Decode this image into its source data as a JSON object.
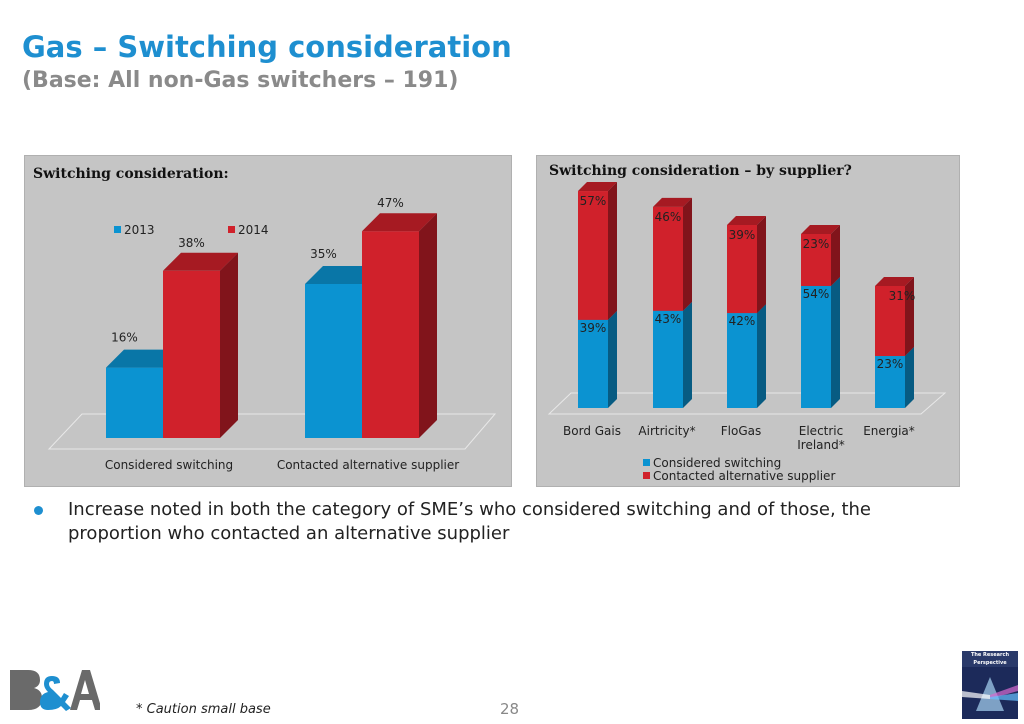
{
  "page": {
    "title": "Gas – Switching consideration",
    "subtitle": "(Base: All non-Gas switchers – 191)",
    "bullet": "Increase noted in both the category of SME’s who considered switching and of those, the proportion who contacted an alternative supplier",
    "footnote": "* Caution small base",
    "page_number": "28",
    "logo_right_text": "The Research Perspective"
  },
  "colors": {
    "blue": "#0b93d1",
    "red": "#d0212b",
    "panel_bg": "#c5c5c5",
    "accent": "#1e8fd0"
  },
  "chart_data": [
    {
      "type": "bar",
      "title": "Switching consideration:",
      "categories": [
        "Considered switching",
        "Contacted alternative supplier"
      ],
      "series": [
        {
          "name": "2013",
          "values": [
            16,
            35
          ]
        },
        {
          "name": "2014",
          "values": [
            38,
            47
          ]
        }
      ],
      "data_labels": [
        [
          "16%",
          "35%"
        ],
        [
          "38%",
          "47%"
        ]
      ],
      "ylim": [
        0,
        60
      ],
      "legend": "top-left"
    },
    {
      "type": "bar",
      "stacked": true,
      "title": "Switching consideration – by supplier?",
      "categories": [
        "Bord Gais",
        "Airtricity*",
        "FloGas",
        "Electric Ireland*",
        "Energia*"
      ],
      "series": [
        {
          "name": "Considered switching",
          "values": [
            39,
            43,
            42,
            54,
            23
          ]
        },
        {
          "name": "Contacted alternative supplier",
          "values": [
            57,
            46,
            39,
            23,
            31
          ]
        }
      ],
      "data_labels": [
        [
          "39%",
          "43%",
          "42%",
          "54%",
          "23%"
        ],
        [
          "57%",
          "46%",
          "39%",
          "23%",
          "31%"
        ]
      ],
      "legend": "bottom"
    }
  ]
}
